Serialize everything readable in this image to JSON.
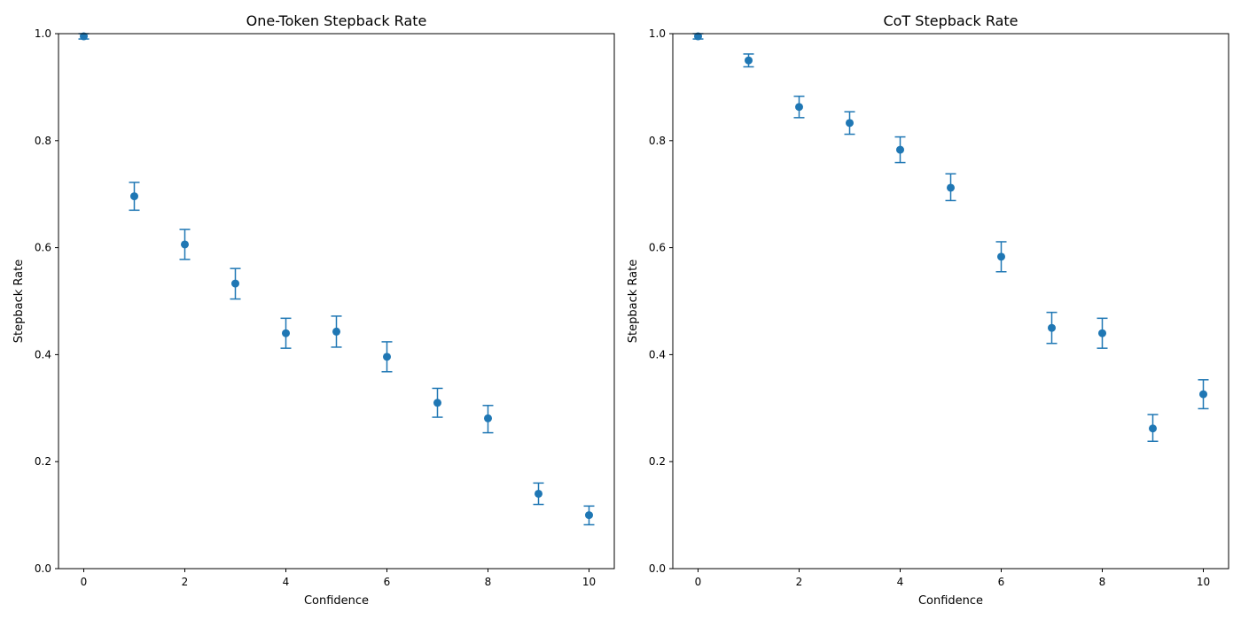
{
  "chart_data": [
    {
      "type": "scatter",
      "title": "One-Token Stepback Rate",
      "xlabel": "Confidence",
      "ylabel": "Stepback Rate",
      "xlim": [
        -0.5,
        10.5
      ],
      "ylim": [
        0,
        1
      ],
      "xticks": [
        "0",
        "2",
        "4",
        "6",
        "8",
        "10"
      ],
      "yticks": [
        "0.0",
        "0.2",
        "0.4",
        "0.6",
        "0.8",
        "1.0"
      ],
      "grid": false,
      "color": "#1f77b4",
      "series": [
        {
          "x": [
            0,
            1,
            2,
            3,
            4,
            5,
            6,
            7,
            8,
            9,
            10
          ],
          "y": [
            0.995,
            0.696,
            0.606,
            0.533,
            0.44,
            0.443,
            0.396,
            0.31,
            0.281,
            0.14,
            0.1
          ],
          "error_low": [
            0.99,
            0.67,
            0.578,
            0.504,
            0.412,
            0.414,
            0.368,
            0.283,
            0.254,
            0.12,
            0.082
          ],
          "error_high": [
            1.0,
            0.722,
            0.634,
            0.561,
            0.468,
            0.472,
            0.424,
            0.337,
            0.305,
            0.16,
            0.117
          ]
        }
      ]
    },
    {
      "type": "scatter",
      "title": "CoT Stepback Rate",
      "xlabel": "Confidence",
      "ylabel": "Stepback Rate",
      "xlim": [
        -0.5,
        10.5
      ],
      "ylim": [
        0,
        1
      ],
      "xticks": [
        "0",
        "2",
        "4",
        "6",
        "8",
        "10"
      ],
      "yticks": [
        "0.0",
        "0.2",
        "0.4",
        "0.6",
        "0.8",
        "1.0"
      ],
      "grid": false,
      "color": "#1f77b4",
      "series": [
        {
          "x": [
            0,
            1,
            2,
            3,
            4,
            5,
            6,
            7,
            8,
            9,
            10
          ],
          "y": [
            0.995,
            0.95,
            0.863,
            0.833,
            0.783,
            0.712,
            0.583,
            0.45,
            0.44,
            0.262,
            0.326
          ],
          "error_low": [
            0.99,
            0.938,
            0.843,
            0.812,
            0.759,
            0.688,
            0.555,
            0.421,
            0.412,
            0.238,
            0.299
          ],
          "error_high": [
            1.0,
            0.962,
            0.883,
            0.854,
            0.807,
            0.738,
            0.611,
            0.479,
            0.468,
            0.288,
            0.353
          ]
        }
      ]
    }
  ]
}
